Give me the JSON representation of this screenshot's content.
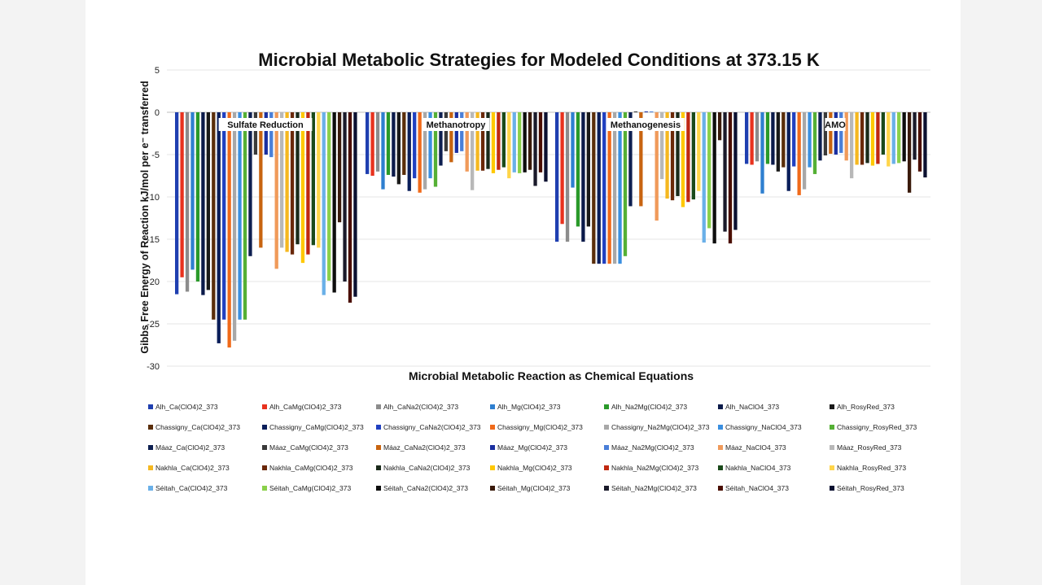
{
  "chart_data": {
    "type": "bar",
    "title": "Microbial Metabolic Strategies for Modeled Conditions at 373.15 K",
    "xlabel": "Microbial Metabolic Reaction as Chemical Equations",
    "ylabel": "Gibbs Free Energy of Reaction kJ/mol per e⁻ transferred",
    "ylim": [
      -30,
      5
    ],
    "yticks": [
      5,
      0,
      -5,
      -10,
      -15,
      -20,
      -25,
      -30
    ],
    "ytick_labels": [
      "5",
      "0",
      "-5",
      "-10",
      "-15",
      "-20",
      "-25",
      "-30"
    ],
    "grid": true,
    "legend_position": "bottom",
    "categories": [
      "Sulfate Reduction",
      "Methanotropy",
      "Methanogenesis",
      "AMO"
    ],
    "series": [
      {
        "name": "Alh_Ca(ClO4)2_373",
        "color": "#1f3fb0",
        "values": [
          -21.5,
          -7.3,
          -15.3,
          -6.1
        ]
      },
      {
        "name": "Alh_CaMg(ClO4)2_373",
        "color": "#e8321e",
        "values": [
          -19.5,
          -7.5,
          -13.2,
          -6.2
        ]
      },
      {
        "name": "Alh_CaNa2(ClO4)2_373",
        "color": "#8c8c8c",
        "values": [
          -21.2,
          -7.0,
          -15.3,
          -5.8
        ]
      },
      {
        "name": "Alh_Mg(ClO4)2_373",
        "color": "#2e7fd0",
        "values": [
          -18.6,
          -9.1,
          -8.9,
          -9.6
        ]
      },
      {
        "name": "Alh_Na2Mg(ClO4)2_373",
        "color": "#2a9a2a",
        "values": [
          -20.0,
          -7.4,
          -13.5,
          -6.1
        ]
      },
      {
        "name": "Alh_NaClO4_373",
        "color": "#0b1a4a",
        "values": [
          -21.6,
          -7.6,
          -15.3,
          -6.2
        ]
      },
      {
        "name": "Alh_RosyRed_373",
        "color": "#1a1a1a",
        "values": [
          -21.0,
          -8.5,
          -13.5,
          -7.0
        ]
      },
      {
        "name": "Chassigny_Ca(ClO4)2_373",
        "color": "#5a2e0a",
        "values": [
          -24.5,
          -7.4,
          -17.9,
          -6.5
        ]
      },
      {
        "name": "Chassigny_CaMg(ClO4)2_373",
        "color": "#0a1e5a",
        "values": [
          -27.3,
          -9.3,
          -17.9,
          -9.3
        ]
      },
      {
        "name": "Chassigny_CaNa2(ClO4)2_373",
        "color": "#2040c0",
        "values": [
          -24.5,
          -7.8,
          -17.9,
          -6.4
        ]
      },
      {
        "name": "Chassigny_Mg(ClO4)2_373",
        "color": "#f06a1a",
        "values": [
          -27.8,
          -9.5,
          -17.9,
          -9.8
        ]
      },
      {
        "name": "Chassigny_Na2Mg(ClO4)2_373",
        "color": "#a8a8a8",
        "values": [
          -27.0,
          -9.1,
          -17.9,
          -9.1
        ]
      },
      {
        "name": "Chassigny_NaClO4_373",
        "color": "#3a8fe0",
        "values": [
          -24.5,
          -7.8,
          -17.9,
          -6.5
        ]
      },
      {
        "name": "Chassigny_RosyRed_373",
        "color": "#55b035",
        "values": [
          -24.5,
          -8.8,
          -17.0,
          -7.3
        ]
      },
      {
        "name": "Máaz_Ca(ClO4)2_373",
        "color": "#0d1f50",
        "values": [
          -17.0,
          -6.3,
          -11.1,
          -5.7
        ]
      },
      {
        "name": "Máaz_CaMg(ClO4)2_373",
        "color": "#3a3a3a",
        "values": [
          -5.0,
          -4.6,
          0.1,
          -5.1
        ]
      },
      {
        "name": "Máaz_CaNa2(ClO4)2_373",
        "color": "#c86410",
        "values": [
          -16.0,
          -5.9,
          -11.1,
          -4.9
        ]
      },
      {
        "name": "Máaz_Mg(ClO4)2_373",
        "color": "#1a2fa0",
        "values": [
          -5.0,
          -4.8,
          0.1,
          -5.0
        ]
      },
      {
        "name": "Máaz_Na2Mg(ClO4)2_373",
        "color": "#4a7fd8",
        "values": [
          -5.3,
          -4.6,
          0.1,
          -4.8
        ]
      },
      {
        "name": "Máaz_NaClO4_373",
        "color": "#f09a5a",
        "values": [
          -18.5,
          -7.0,
          -12.8,
          -5.7
        ]
      },
      {
        "name": "Máaz_RosyRed_373",
        "color": "#b8b8b8",
        "values": [
          -16.0,
          -9.2,
          -7.9,
          -7.8
        ]
      },
      {
        "name": "Nakhla_Ca(ClO4)2_373",
        "color": "#f5b820",
        "values": [
          -16.5,
          -6.9,
          -10.2,
          -6.2
        ]
      },
      {
        "name": "Nakhla_CaMg(ClO4)2_373",
        "color": "#6a2808",
        "values": [
          -16.8,
          -6.9,
          -10.4,
          -6.2
        ]
      },
      {
        "name": "Nakhla_CaNa2(ClO4)2_373",
        "color": "#1a2a1a",
        "values": [
          -15.6,
          -6.7,
          -9.9,
          -6.0
        ]
      },
      {
        "name": "Nakhla_Mg(ClO4)2_373",
        "color": "#ffc800",
        "values": [
          -17.8,
          -7.2,
          -11.2,
          -6.3
        ]
      },
      {
        "name": "Nakhla_Na2Mg(ClO4)2_373",
        "color": "#c02810",
        "values": [
          -16.8,
          -6.8,
          -10.6,
          -6.1
        ]
      },
      {
        "name": "Nakhla_NaClO4_373",
        "color": "#1a4a1a",
        "values": [
          -15.7,
          -6.5,
          -10.3,
          -5.0
        ]
      },
      {
        "name": "Nakhla_RosyRed_373",
        "color": "#ffd54a",
        "values": [
          -16.0,
          -7.8,
          -9.3,
          -6.4
        ]
      },
      {
        "name": "Séitah_Ca(ClO4)2_373",
        "color": "#6ab0e8",
        "values": [
          -21.6,
          -7.1,
          -15.4,
          -6.1
        ]
      },
      {
        "name": "Séitah_CaMg(ClO4)2_373",
        "color": "#8ad04a",
        "values": [
          -19.9,
          -7.2,
          -13.7,
          -6.0
        ]
      },
      {
        "name": "Séitah_CaNa2(ClO4)2_373",
        "color": "#0d0d0d",
        "values": [
          -21.3,
          -7.1,
          -15.5,
          -5.8
        ]
      },
      {
        "name": "Séitah_Mg(ClO4)2_373",
        "color": "#3a1a0a",
        "values": [
          -13.0,
          -6.8,
          -3.3,
          -9.5
        ]
      },
      {
        "name": "Séitah_Na2Mg(ClO4)2_373",
        "color": "#1a1a2a",
        "values": [
          -20.0,
          -8.7,
          -14.1,
          -5.6
        ]
      },
      {
        "name": "Séitah_NaClO4_373",
        "color": "#4a0e00",
        "values": [
          -22.5,
          -7.1,
          -15.5,
          -7.0
        ]
      },
      {
        "name": "Séitah_RosyRed_373",
        "color": "#0a1030",
        "values": [
          -21.8,
          -8.2,
          -13.9,
          -7.7
        ]
      }
    ]
  }
}
